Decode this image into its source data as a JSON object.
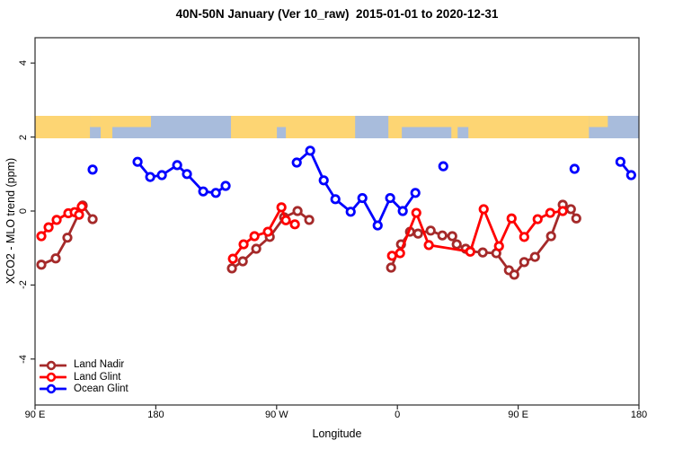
{
  "title": "40N-50N January (Ver 10_raw)  2015-01-01 to 2020-12-31",
  "axes": {
    "x_label": "Longitude",
    "y_label": "XCO2 - MLO trend (ppm)",
    "x_ticks": [
      {
        "deg": 0,
        "label": "90 E"
      },
      {
        "deg": 90,
        "label": "180"
      },
      {
        "deg": 180,
        "label": "90 W"
      },
      {
        "deg": 270,
        "label": "0"
      },
      {
        "deg": 360,
        "label": "90 E"
      },
      {
        "deg": 450,
        "label": "180"
      }
    ],
    "y_ticks": [
      {
        "value": 4,
        "label": "4"
      },
      {
        "value": 2,
        "label": "2"
      },
      {
        "value": 0,
        "label": "0"
      },
      {
        "value": -2,
        "label": "-2"
      },
      {
        "value": -4,
        "label": "-4"
      }
    ]
  },
  "map_band": {
    "description": "40N-50N world coastline strip drawn across the plot near y=2",
    "land_color": "#FDD573",
    "ocean_color": "#A8BCDC",
    "segments": [
      {
        "type": "land",
        "from": 0,
        "to": 40.9,
        "part": "full"
      },
      {
        "type": "land",
        "from": 40.9,
        "to": 86.4,
        "part": "top"
      },
      {
        "type": "land",
        "from": 48.9,
        "to": 57.6,
        "part": "bottom"
      },
      {
        "type": "land",
        "from": 146.0,
        "to": 238.5,
        "part": "full"
      },
      {
        "type": "ocean",
        "from": 180.2,
        "to": 186.9,
        "part": "bottom"
      },
      {
        "type": "land",
        "from": 263.3,
        "to": 412.7,
        "part": "full"
      },
      {
        "type": "ocean",
        "from": 273.3,
        "to": 310.2,
        "part": "bottom"
      },
      {
        "type": "ocean",
        "from": 314.9,
        "to": 322.9,
        "part": "bottom"
      },
      {
        "type": "land",
        "from": 412.7,
        "to": 426.8,
        "part": "top"
      }
    ]
  },
  "chart_data": {
    "type": "line",
    "title": "40N-50N January (Ver 10_raw)  2015-01-01 to 2020-12-31",
    "xlabel": "Longitude",
    "ylabel": "XCO2 - MLO trend (ppm)",
    "ylim": [
      -5,
      5
    ],
    "x_axis_note": "x = degrees along axis from left edge; axis spans 450 deg: 90E -> 180 -> 90W -> 0 -> 90E -> 180",
    "legend_position": "bottom-left inside plot",
    "grid": false,
    "series": [
      {
        "name": "Land Nadir",
        "color": "#A52A2A",
        "segments": [
          [
            [
              4.7,
              -1.45
            ],
            [
              15.4,
              -1.28
            ],
            [
              24.1,
              -0.72
            ],
            [
              35.5,
              0.15
            ],
            [
              42.9,
              -0.22
            ]
          ],
          [
            [
              146.7,
              -1.55
            ],
            [
              154.8,
              -1.36
            ],
            [
              164.8,
              -1.02
            ],
            [
              174.9,
              -0.7
            ],
            [
              185.6,
              -0.17
            ],
            [
              195.6,
              0.0
            ],
            [
              204.3,
              -0.24
            ]
          ],
          [
            [
              265.3,
              -1.53
            ],
            [
              272.7,
              -0.9
            ],
            [
              279.4,
              -0.56
            ],
            [
              285.4,
              -0.61
            ],
            [
              294.8,
              -0.53
            ],
            [
              303.5,
              -0.66
            ],
            [
              310.9,
              -0.68
            ],
            [
              314.2,
              -0.9
            ],
            [
              320.9,
              -1.02
            ],
            [
              324.3,
              -1.09
            ],
            [
              333.6,
              -1.12
            ],
            [
              343.7,
              -1.14
            ],
            [
              353.1,
              -1.6
            ],
            [
              357.1,
              -1.72
            ],
            [
              364.5,
              -1.38
            ],
            [
              372.5,
              -1.24
            ],
            [
              384.5,
              -0.68
            ],
            [
              393.2,
              0.17
            ],
            [
              399.3,
              0.05
            ],
            [
              403.3,
              -0.2
            ]
          ]
        ]
      },
      {
        "name": "Land Glint",
        "color": "#FF0000",
        "segments": [
          [
            [
              4.7,
              -0.68
            ],
            [
              10.1,
              -0.44
            ],
            [
              16.1,
              -0.24
            ],
            [
              24.8,
              -0.06
            ],
            [
              29.5,
              -0.03
            ],
            [
              32.8,
              -0.1
            ],
            [
              34.8,
              0.12
            ]
          ],
          [
            [
              147.4,
              -1.29
            ],
            [
              155.4,
              -0.9
            ],
            [
              163.5,
              -0.68
            ],
            [
              173.5,
              -0.56
            ],
            [
              183.6,
              0.1
            ],
            [
              186.9,
              -0.25
            ],
            [
              193.6,
              -0.36
            ]
          ],
          [
            [
              266.0,
              -1.21
            ],
            [
              272.0,
              -1.14
            ],
            [
              284.1,
              -0.05
            ],
            [
              293.4,
              -0.92
            ],
            [
              324.3,
              -1.1
            ],
            [
              334.3,
              0.05
            ],
            [
              345.7,
              -0.95
            ],
            [
              355.1,
              -0.2
            ],
            [
              364.5,
              -0.7
            ],
            [
              374.5,
              -0.22
            ],
            [
              383.9,
              -0.05
            ],
            [
              393.2,
              0.0
            ]
          ]
        ]
      },
      {
        "name": "Ocean Glint",
        "color": "#0000FF",
        "segments": [
          [
            [
              42.9,
              1.12
            ]
          ],
          [
            [
              76.4,
              1.33
            ],
            [
              85.8,
              0.92
            ],
            [
              94.5,
              0.97
            ],
            [
              105.9,
              1.24
            ],
            [
              113.2,
              1.0
            ],
            [
              125.3,
              0.53
            ],
            [
              134.7,
              0.49
            ],
            [
              142.0,
              0.68
            ]
          ],
          [
            [
              195.0,
              1.31
            ],
            [
              205.0,
              1.63
            ],
            [
              215.1,
              0.83
            ],
            [
              223.8,
              0.32
            ],
            [
              235.2,
              -0.02
            ],
            [
              243.9,
              0.35
            ],
            [
              255.3,
              -0.39
            ],
            [
              264.6,
              0.35
            ],
            [
              274.0,
              0.0
            ],
            [
              283.4,
              0.49
            ]
          ],
          [
            [
              304.2,
              1.21
            ]
          ],
          [
            [
              402.0,
              1.14
            ]
          ],
          [
            [
              436.2,
              1.33
            ],
            [
              444.2,
              0.97
            ]
          ]
        ]
      }
    ]
  }
}
